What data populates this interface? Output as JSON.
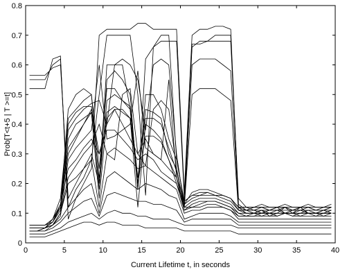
{
  "chart_data": {
    "type": "line",
    "title": "",
    "xlabel": "Current Lifetime t, in seconds",
    "ylabel": "Prob[T<t+5 | T >=t]",
    "xlim": [
      0,
      40
    ],
    "ylim": [
      0,
      0.8
    ],
    "x_ticks": [
      0,
      5,
      10,
      15,
      20,
      25,
      30,
      35,
      40
    ],
    "y_ticks": [
      0,
      0.1,
      0.2,
      0.3,
      0.4,
      0.5,
      0.6,
      0.7,
      0.8
    ],
    "grid": false,
    "line_color": "#000000",
    "x": [
      0.5,
      1.5,
      2.5,
      3.5,
      4.5,
      5.5,
      6.5,
      7.5,
      8.5,
      9.5,
      10.5,
      11.5,
      12.5,
      13.5,
      14.5,
      15.5,
      16.5,
      17.5,
      18.5,
      19.5,
      20.5,
      21.5,
      22.5,
      23.5,
      24.5,
      25.5,
      26.5,
      27.5,
      28.5,
      29.5,
      30.5,
      31.5,
      32.5,
      33.5,
      34.5,
      35.5,
      36.5,
      37.5,
      38.5,
      39.5
    ],
    "series": [
      {
        "values": [
          0.565,
          0.565,
          0.565,
          0.59,
          0.6,
          0.15,
          0.2,
          0.25,
          0.3,
          0.2,
          0.6,
          0.6,
          0.6,
          0.45,
          0.18,
          0.62,
          0.66,
          0.7,
          0.7,
          0.28,
          0.14,
          0.67,
          0.67,
          0.68,
          0.68,
          0.68,
          0.68,
          0.15,
          0.12,
          0.11,
          0.1,
          0.11,
          0.12,
          0.1,
          0.11,
          0.12,
          0.1,
          0.1,
          0.11,
          0.1
        ]
      },
      {
        "values": [
          0.55,
          0.55,
          0.55,
          0.6,
          0.62,
          0.12,
          0.18,
          0.22,
          0.28,
          0.5,
          0.7,
          0.7,
          0.7,
          0.7,
          0.5,
          0.16,
          0.66,
          0.68,
          0.68,
          0.68,
          0.15,
          0.66,
          0.68,
          0.68,
          0.7,
          0.7,
          0.7,
          0.12,
          0.1,
          0.1,
          0.11,
          0.09,
          0.1,
          0.12,
          0.1,
          0.1,
          0.11,
          0.1,
          0.1,
          0.11
        ]
      },
      {
        "values": [
          0.52,
          0.52,
          0.52,
          0.62,
          0.63,
          0.08,
          0.15,
          0.2,
          0.25,
          0.7,
          0.72,
          0.72,
          0.72,
          0.72,
          0.74,
          0.74,
          0.72,
          0.72,
          0.72,
          0.72,
          0.17,
          0.7,
          0.72,
          0.72,
          0.73,
          0.73,
          0.72,
          0.13,
          0.11,
          0.1,
          0.1,
          0.1,
          0.11,
          0.1,
          0.1,
          0.12,
          0.1,
          0.1,
          0.11,
          0.12
        ]
      },
      {
        "values": [
          0.06,
          0.06,
          0.06,
          0.08,
          0.12,
          0.3,
          0.35,
          0.4,
          0.45,
          0.3,
          0.4,
          0.45,
          0.4,
          0.35,
          0.3,
          0.35,
          0.3,
          0.28,
          0.25,
          0.22,
          0.12,
          0.12,
          0.13,
          0.14,
          0.14,
          0.13,
          0.12,
          0.1,
          0.09,
          0.09,
          0.1,
          0.1,
          0.09,
          0.1,
          0.09,
          0.1,
          0.1,
          0.09,
          0.1,
          0.1
        ]
      },
      {
        "values": [
          0.05,
          0.05,
          0.05,
          0.08,
          0.15,
          0.42,
          0.45,
          0.48,
          0.5,
          0.25,
          0.52,
          0.52,
          0.48,
          0.45,
          0.2,
          0.45,
          0.44,
          0.42,
          0.3,
          0.25,
          0.12,
          0.14,
          0.15,
          0.15,
          0.15,
          0.14,
          0.13,
          0.1,
          0.1,
          0.1,
          0.11,
          0.1,
          0.1,
          0.1,
          0.1,
          0.11,
          0.1,
          0.1,
          0.1,
          0.1
        ]
      },
      {
        "values": [
          0.04,
          0.04,
          0.05,
          0.07,
          0.13,
          0.25,
          0.28,
          0.32,
          0.35,
          0.3,
          0.38,
          0.38,
          0.35,
          0.32,
          0.28,
          0.3,
          0.28,
          0.24,
          0.22,
          0.2,
          0.11,
          0.12,
          0.12,
          0.13,
          0.13,
          0.12,
          0.11,
          0.09,
          0.09,
          0.09,
          0.09,
          0.09,
          0.09,
          0.1,
          0.09,
          0.09,
          0.09,
          0.09,
          0.09,
          0.09
        ]
      },
      {
        "values": [
          0.05,
          0.05,
          0.05,
          0.06,
          0.1,
          0.35,
          0.4,
          0.42,
          0.44,
          0.15,
          0.42,
          0.45,
          0.45,
          0.42,
          0.12,
          0.4,
          0.38,
          0.35,
          0.28,
          0.2,
          0.13,
          0.17,
          0.18,
          0.18,
          0.17,
          0.16,
          0.15,
          0.11,
          0.11,
          0.12,
          0.12,
          0.11,
          0.12,
          0.12,
          0.11,
          0.12,
          0.12,
          0.11,
          0.12,
          0.12
        ]
      },
      {
        "values": [
          0.04,
          0.04,
          0.04,
          0.06,
          0.1,
          0.2,
          0.22,
          0.25,
          0.28,
          0.12,
          0.3,
          0.32,
          0.3,
          0.28,
          0.25,
          0.26,
          0.24,
          0.22,
          0.2,
          0.18,
          0.1,
          0.11,
          0.11,
          0.12,
          0.12,
          0.12,
          0.11,
          0.08,
          0.08,
          0.08,
          0.08,
          0.08,
          0.08,
          0.08,
          0.08,
          0.08,
          0.08,
          0.08,
          0.08,
          0.08
        ]
      },
      {
        "values": [
          0.06,
          0.06,
          0.06,
          0.07,
          0.12,
          0.45,
          0.5,
          0.52,
          0.5,
          0.2,
          0.55,
          0.58,
          0.55,
          0.5,
          0.18,
          0.5,
          0.5,
          0.45,
          0.35,
          0.28,
          0.14,
          0.16,
          0.17,
          0.17,
          0.16,
          0.16,
          0.15,
          0.12,
          0.12,
          0.12,
          0.13,
          0.12,
          0.12,
          0.13,
          0.12,
          0.12,
          0.13,
          0.12,
          0.12,
          0.13
        ]
      },
      {
        "values": [
          0.05,
          0.05,
          0.05,
          0.06,
          0.09,
          0.28,
          0.32,
          0.35,
          0.38,
          0.6,
          0.35,
          0.36,
          0.38,
          0.4,
          0.58,
          0.32,
          0.3,
          0.28,
          0.55,
          0.22,
          0.11,
          0.13,
          0.14,
          0.14,
          0.14,
          0.13,
          0.12,
          0.09,
          0.09,
          0.1,
          0.09,
          0.1,
          0.09,
          0.1,
          0.1,
          0.09,
          0.1,
          0.1,
          0.09,
          0.1
        ]
      },
      {
        "values": [
          0.04,
          0.04,
          0.05,
          0.06,
          0.08,
          0.12,
          0.15,
          0.18,
          0.2,
          0.1,
          0.22,
          0.24,
          0.22,
          0.2,
          0.18,
          0.2,
          0.19,
          0.18,
          0.16,
          0.15,
          0.08,
          0.09,
          0.1,
          0.1,
          0.1,
          0.1,
          0.09,
          0.07,
          0.07,
          0.07,
          0.07,
          0.07,
          0.07,
          0.07,
          0.07,
          0.07,
          0.07,
          0.07,
          0.07,
          0.07
        ]
      },
      {
        "values": [
          0.03,
          0.03,
          0.03,
          0.04,
          0.05,
          0.07,
          0.08,
          0.09,
          0.1,
          0.08,
          0.1,
          0.11,
          0.1,
          0.1,
          0.09,
          0.09,
          0.08,
          0.08,
          0.08,
          0.07,
          0.06,
          0.06,
          0.06,
          0.06,
          0.06,
          0.06,
          0.06,
          0.05,
          0.05,
          0.05,
          0.05,
          0.05,
          0.05,
          0.05,
          0.05,
          0.05,
          0.05,
          0.05,
          0.05,
          0.05
        ]
      },
      {
        "values": [
          0.02,
          0.02,
          0.02,
          0.03,
          0.04,
          0.05,
          0.06,
          0.07,
          0.07,
          0.06,
          0.07,
          0.07,
          0.06,
          0.06,
          0.06,
          0.05,
          0.05,
          0.05,
          0.05,
          0.05,
          0.04,
          0.04,
          0.04,
          0.04,
          0.04,
          0.04,
          0.04,
          0.03,
          0.03,
          0.03,
          0.03,
          0.03,
          0.03,
          0.03,
          0.03,
          0.03,
          0.03,
          0.03,
          0.03,
          0.03
        ]
      },
      {
        "values": [
          0.05,
          0.05,
          0.05,
          0.07,
          0.11,
          0.38,
          0.42,
          0.45,
          0.47,
          0.48,
          0.4,
          0.6,
          0.62,
          0.6,
          0.55,
          0.38,
          0.6,
          0.62,
          0.6,
          0.3,
          0.12,
          0.6,
          0.62,
          0.62,
          0.62,
          0.6,
          0.58,
          0.12,
          0.11,
          0.11,
          0.12,
          0.11,
          0.11,
          0.12,
          0.11,
          0.11,
          0.12,
          0.11,
          0.11,
          0.12
        ]
      },
      {
        "values": [
          0.06,
          0.06,
          0.06,
          0.08,
          0.13,
          0.32,
          0.36,
          0.4,
          0.44,
          0.18,
          0.48,
          0.5,
          0.48,
          0.46,
          0.22,
          0.42,
          0.42,
          0.4,
          0.32,
          0.24,
          0.13,
          0.15,
          0.16,
          0.16,
          0.16,
          0.15,
          0.14,
          0.11,
          0.11,
          0.11,
          0.11,
          0.11,
          0.11,
          0.11,
          0.11,
          0.11,
          0.11,
          0.11,
          0.11,
          0.11
        ]
      },
      {
        "values": [
          0.04,
          0.04,
          0.04,
          0.05,
          0.07,
          0.1,
          0.12,
          0.14,
          0.15,
          0.09,
          0.16,
          0.17,
          0.16,
          0.15,
          0.14,
          0.14,
          0.13,
          0.13,
          0.12,
          0.11,
          0.07,
          0.08,
          0.08,
          0.08,
          0.08,
          0.08,
          0.08,
          0.06,
          0.06,
          0.06,
          0.06,
          0.06,
          0.06,
          0.06,
          0.06,
          0.06,
          0.06,
          0.06,
          0.06,
          0.06
        ]
      },
      {
        "values": [
          0.05,
          0.05,
          0.05,
          0.06,
          0.1,
          0.22,
          0.26,
          0.3,
          0.33,
          0.4,
          0.3,
          0.28,
          0.5,
          0.52,
          0.3,
          0.26,
          0.45,
          0.48,
          0.45,
          0.25,
          0.12,
          0.5,
          0.52,
          0.52,
          0.52,
          0.5,
          0.48,
          0.11,
          0.1,
          0.1,
          0.1,
          0.1,
          0.1,
          0.1,
          0.1,
          0.1,
          0.1,
          0.1,
          0.1,
          0.1
        ]
      },
      {
        "values": [
          0.06,
          0.06,
          0.06,
          0.07,
          0.12,
          0.4,
          0.44,
          0.46,
          0.46,
          0.22,
          0.44,
          0.46,
          0.44,
          0.42,
          0.2,
          0.36,
          0.36,
          0.34,
          0.28,
          0.22,
          0.14,
          0.16,
          0.16,
          0.17,
          0.16,
          0.16,
          0.15,
          0.12,
          0.12,
          0.12,
          0.12,
          0.12,
          0.12,
          0.12,
          0.12,
          0.12,
          0.12,
          0.12,
          0.12,
          0.12
        ]
      }
    ]
  }
}
